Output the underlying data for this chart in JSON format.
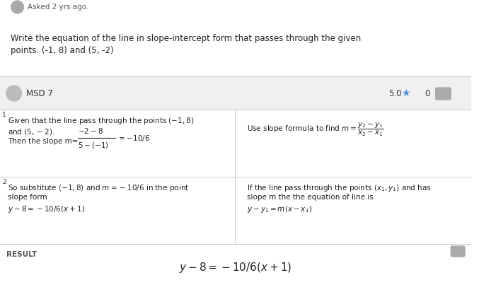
{
  "bg_color": "#ffffff",
  "header_bg": "#f0f0f0",
  "divider_color": "#cccccc",
  "question_text_line1": "Write the equation of the line in slope-intercept form that passes through the given",
  "question_text_line2": "points. (-1, 8) and (5, -2)",
  "user_name": "MSD 7",
  "rating": "5.0",
  "rating_color": "#4a90d9",
  "step1_left_line1": "Given that the line pass through the points $(-1, 8)$",
  "step1_left_line2": "and $(5, -2)$.",
  "step1_left_line3a": "Then the slope m=",
  "step1_left_frac_num": "$-2-8$",
  "step1_left_frac_den": "$5-(-1)$",
  "step1_left_line3b": "= $-10/6$",
  "step1_right_line1": "Use slope formula to find $m = \\dfrac{y_2 - y_1}{x_2 - x_1}$",
  "step2_left_line1": "So substitute $(-1, 8)$ and $m = -10/6$ in the point",
  "step2_left_line2": "slope form",
  "step2_left_line3": "$y - 8 = -10/6(x+1)$",
  "step2_right_line1": "If the line pass through the points $(x_1, y_1)$ and has",
  "step2_right_line2": "slope m the the equation of line is",
  "step2_right_line3": "$y - y_1 = m(x - x_1)$",
  "result_label": "RESULT",
  "result_formula": "$y - 8 = -10/6(x+1)$",
  "asked_text": "Asked 2 yrs ago.",
  "avatar_color": "#aaaaaa",
  "chat_icon_color": "#aaaaaa",
  "chat_count": "0"
}
